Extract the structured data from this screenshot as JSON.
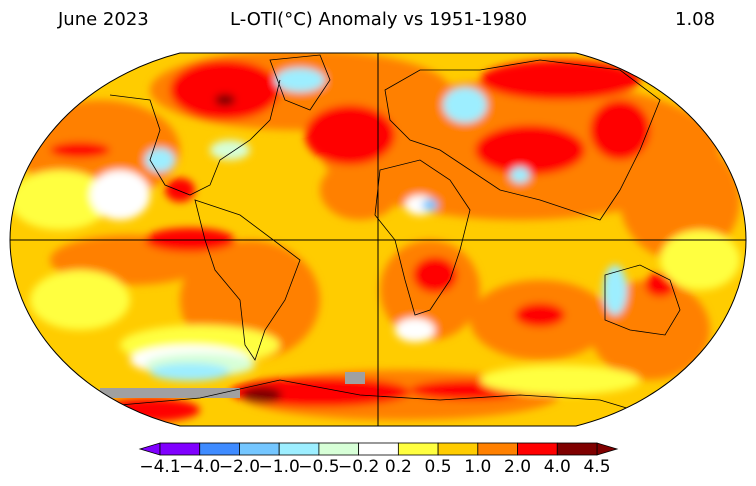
{
  "header": {
    "date": "June 2023",
    "title": "L-OTI(°C) Anomaly vs 1951-1980",
    "global_mean": "1.08"
  },
  "colorbar": {
    "labels": [
      "−4.1",
      "−4.0",
      "−2.0",
      "−1.0",
      "−0.5",
      "−0.2",
      "0.2",
      "0.5",
      "1.0",
      "2.0",
      "4.0",
      "4.5"
    ],
    "colors": [
      "#8000ff",
      "#3f8bff",
      "#74c6ff",
      "#9deeff",
      "#d7ffd7",
      "#ffffff",
      "#ffff40",
      "#ffcc00",
      "#ff8000",
      "#ff0000",
      "#7f0000"
    ],
    "under_color": "#8000ff",
    "over_color": "#7f0000"
  },
  "map": {
    "projection": "Robinson",
    "missing_color": "#a0a0a0"
  }
}
